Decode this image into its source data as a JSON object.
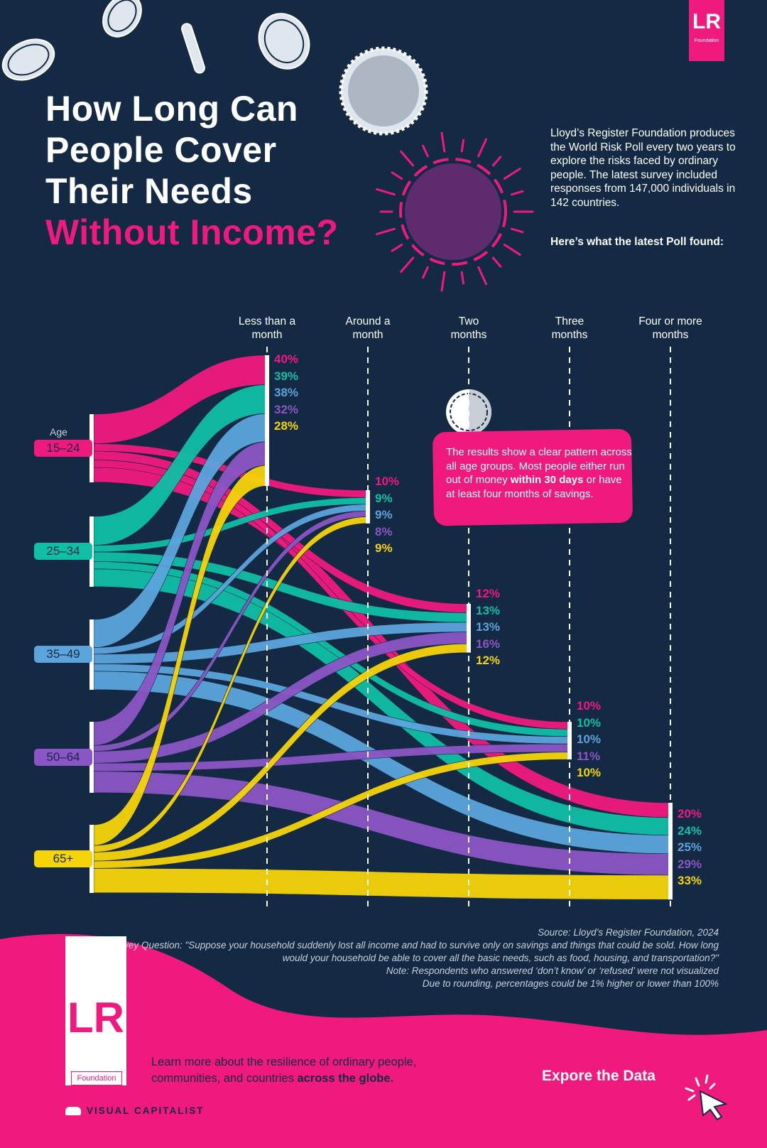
{
  "title": {
    "line1": "How Long Can",
    "line2": "People Cover",
    "line3": "Their Needs",
    "line4": "Without Income?"
  },
  "intro": {
    "text": "Lloyd’s Register Foundation produces the World Risk Poll every two years to explore the risks faced by ordinary people. The latest survey included responses from 147,000 individuals in 142 countries.",
    "cta": "Here’s what the latest Poll found:"
  },
  "brand": {
    "lr_top": "LR",
    "lr_top_sub": "Foundation",
    "lr_bottom": "LR",
    "lr_bottom_sub": "Foundation",
    "visual_capitalist": "VISUAL CAPITALIST"
  },
  "callout": {
    "text_a": "The results show a clear pattern across all age groups. Most people either run out of money ",
    "text_b": "within 30 days",
    "text_c": " or have at least four months of savings."
  },
  "footer": {
    "source": "Source: Lloyd’s Register Foundation, 2024",
    "question": "Survey Question: \"Suppose your household suddenly lost all income and had to survive only on savings and things that could be sold. How long would your household be able to cover all the basic needs, such as food, housing, and transportation?\"",
    "note": "Note: Respondents who answered ‘don’t know’ or ‘refused’ were not visualized",
    "rounding": "Due to rounding, percentages could be 1% higher or lower than 100%",
    "learn_a": "Learn more about the resilience of ordinary people, communities, and countries ",
    "learn_b": "across the globe.",
    "button": "Expore the Data"
  },
  "colors": {
    "background": "#142a44",
    "accent": "#f0197d",
    "15-24": "#f0197d",
    "25-34": "#0fbfa6",
    "35-49": "#5ba4dc",
    "50-64": "#8a55c4",
    "65+": "#f5d40a"
  },
  "chart_data": {
    "type": "sankey",
    "title": "How Long Can People Cover Their Needs Without Income?",
    "source_label": "Age",
    "sources": [
      "15-24",
      "25-34",
      "35-49",
      "50-64",
      "65+"
    ],
    "categories": [
      "Less than a month",
      "Around a month",
      "Two months",
      "Three months",
      "Four or more months"
    ],
    "category_labels": [
      [
        "Less than a",
        "month"
      ],
      [
        "Around a",
        "month"
      ],
      [
        "Two",
        "months"
      ],
      [
        "Three",
        "months"
      ],
      [
        "Four or more",
        "months"
      ]
    ],
    "series": [
      {
        "name": "15-24",
        "values": [
          40,
          10,
          12,
          10,
          20
        ]
      },
      {
        "name": "25-34",
        "values": [
          39,
          9,
          13,
          10,
          24
        ]
      },
      {
        "name": "35-49",
        "values": [
          38,
          9,
          13,
          10,
          25
        ]
      },
      {
        "name": "50-64",
        "values": [
          32,
          8,
          16,
          11,
          29
        ]
      },
      {
        "name": "65+",
        "values": [
          28,
          9,
          12,
          10,
          33
        ]
      }
    ],
    "unit": "%"
  }
}
